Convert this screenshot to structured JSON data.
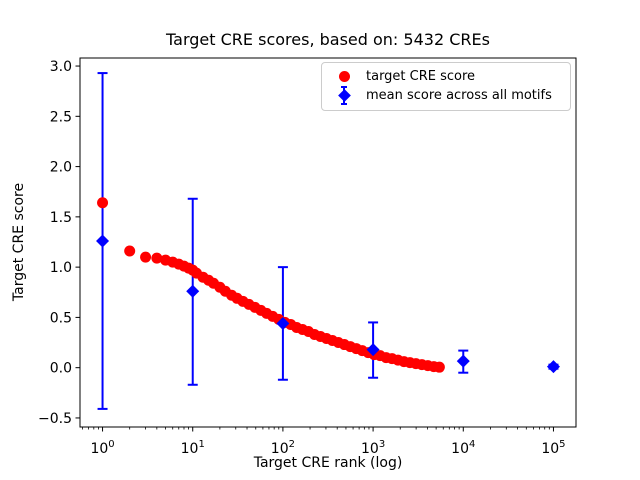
{
  "figure": {
    "title": "Target CRE scores, based on: 5432 CREs",
    "xlabel": "Target CRE rank (log)",
    "ylabel": "Target CRE score",
    "background_color": "#ffffff",
    "axes_border_color": "#000000"
  },
  "legend": {
    "entries": [
      {
        "label": "target CRE score",
        "marker": "circle",
        "color": "#ff0000"
      },
      {
        "label": "mean score across all motifs",
        "marker": "diamond-errorbar",
        "color": "#0000ff"
      }
    ],
    "border_color": "#cccccc",
    "position": "upper right inside"
  },
  "chart_data": {
    "type": "scatter",
    "title": "Target CRE scores, based on: 5432 CREs",
    "xlabel": "Target CRE rank (log)",
    "ylabel": "Target CRE score",
    "x_scale": "log",
    "grid": false,
    "xlim_log10": [
      -0.25,
      5.25
    ],
    "ylim": [
      -0.59,
      3.08
    ],
    "x_ticks": [
      {
        "v": 1,
        "base": "10",
        "exp": "0"
      },
      {
        "v": 10,
        "base": "10",
        "exp": "1"
      },
      {
        "v": 100,
        "base": "10",
        "exp": "2"
      },
      {
        "v": 1000,
        "base": "10",
        "exp": "3"
      },
      {
        "v": 10000,
        "base": "10",
        "exp": "4"
      },
      {
        "v": 100000,
        "base": "10",
        "exp": "5"
      }
    ],
    "y_ticks": [
      {
        "v": 3.0,
        "label": "3.0"
      },
      {
        "v": 2.5,
        "label": "2.5"
      },
      {
        "v": 2.0,
        "label": "2.0"
      },
      {
        "v": 1.5,
        "label": "1.5"
      },
      {
        "v": 1.0,
        "label": "1.0"
      },
      {
        "v": 0.5,
        "label": "0.5"
      },
      {
        "v": 0.0,
        "label": "0.0"
      },
      {
        "v": -0.5,
        "label": "−0.5"
      }
    ],
    "series": [
      {
        "name": "target CRE score",
        "type": "scatter",
        "marker": "circle",
        "color": "#ff0000",
        "points": [
          [
            1,
            1.64
          ],
          [
            2,
            1.16
          ],
          [
            3,
            1.1
          ],
          [
            4,
            1.09
          ],
          [
            5,
            1.07
          ],
          [
            6,
            1.05
          ],
          [
            7,
            1.03
          ],
          [
            8,
            1.01
          ],
          [
            9,
            0.99
          ],
          [
            10,
            0.97
          ],
          [
            11,
            0.94
          ],
          [
            13,
            0.9
          ],
          [
            15,
            0.87
          ],
          [
            17,
            0.84
          ],
          [
            20,
            0.8
          ],
          [
            23,
            0.76
          ],
          [
            27,
            0.72
          ],
          [
            31,
            0.69
          ],
          [
            36,
            0.66
          ],
          [
            42,
            0.63
          ],
          [
            49,
            0.6
          ],
          [
            57,
            0.57
          ],
          [
            66,
            0.54
          ],
          [
            77,
            0.51
          ],
          [
            90,
            0.48
          ],
          [
            105,
            0.45
          ],
          [
            122,
            0.43
          ],
          [
            142,
            0.4
          ],
          [
            165,
            0.38
          ],
          [
            192,
            0.36
          ],
          [
            224,
            0.33
          ],
          [
            261,
            0.31
          ],
          [
            304,
            0.29
          ],
          [
            354,
            0.27
          ],
          [
            412,
            0.25
          ],
          [
            480,
            0.23
          ],
          [
            559,
            0.21
          ],
          [
            651,
            0.19
          ],
          [
            758,
            0.17
          ],
          [
            883,
            0.15
          ],
          [
            1028,
            0.13
          ],
          [
            1197,
            0.12
          ],
          [
            1394,
            0.1
          ],
          [
            1623,
            0.09
          ],
          [
            1890,
            0.075
          ],
          [
            2201,
            0.06
          ],
          [
            2563,
            0.05
          ],
          [
            2985,
            0.04
          ],
          [
            3476,
            0.03
          ],
          [
            4048,
            0.02
          ],
          [
            4714,
            0.01
          ],
          [
            5432,
            0.005
          ]
        ]
      },
      {
        "name": "mean score across all motifs",
        "type": "errorbar",
        "marker": "diamond",
        "color": "#0000ff",
        "points": [
          {
            "x": 1,
            "y": 1.26,
            "lo": -0.41,
            "hi": 2.93
          },
          {
            "x": 10,
            "y": 0.76,
            "lo": -0.17,
            "hi": 1.68
          },
          {
            "x": 100,
            "y": 0.44,
            "lo": -0.12,
            "hi": 1.0
          },
          {
            "x": 1000,
            "y": 0.18,
            "lo": -0.1,
            "hi": 0.45
          },
          {
            "x": 10000,
            "y": 0.065,
            "lo": -0.05,
            "hi": 0.17
          },
          {
            "x": 100000,
            "y": 0.01,
            "lo": -0.01,
            "hi": 0.03
          }
        ]
      }
    ]
  }
}
